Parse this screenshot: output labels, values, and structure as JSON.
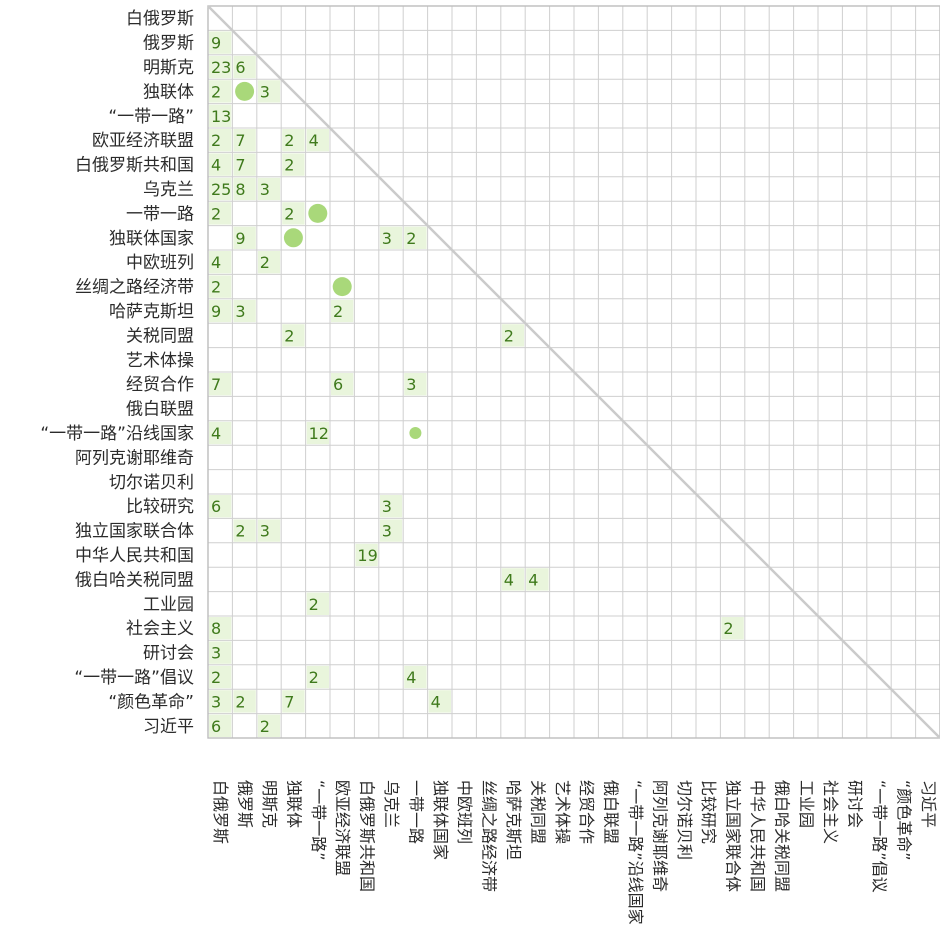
{
  "chart_data": {
    "type": "heatmap",
    "title": "",
    "labels": [
      "白俄罗斯",
      "俄罗斯",
      "明斯克",
      "独联体",
      "“一带一路”",
      "欧亚经济联盟",
      "白俄罗斯共和国",
      "乌克兰",
      "一带一路",
      "独联体国家",
      "中欧班列",
      "丝绸之路经济带",
      "哈萨克斯坦",
      "关税同盟",
      "艺术体操",
      "经贸合作",
      "俄白联盟",
      "“一带一路”沿线国家",
      "阿列克谢耶维奇",
      "切尔诺贝利",
      "比较研究",
      "独立国家联合体",
      "中华人民共和国",
      "俄白哈关税同盟",
      "工业园",
      "社会主义",
      "研讨会",
      "“一带一路”倡议",
      "“颜色革命”",
      "习近平"
    ],
    "column_labels": [
      "白俄罗斯",
      "俄罗斯",
      "明斯克",
      "独联体",
      "“一带一路”",
      "欧亚经济联盟",
      "白俄罗斯共和国",
      "乌克兰",
      "一带一路",
      "独联体国家",
      "中欧班列",
      "丝绸之路经济带",
      "哈萨克斯坦",
      "关税同盟",
      "艺术体操",
      "经贸合作",
      "俄白联盟",
      "“一带一路”沿线国家",
      "阿列克谢耶维奇",
      "切尔诺贝利",
      "比较研究",
      "独立国家联合体",
      "中华人民共和国",
      "俄白哈关税同盟",
      "工业园",
      "社会主义",
      "研讨会",
      "“一带一路”倡议",
      "“颜色革命”",
      "习近平"
    ],
    "matrix": "lower-triangular co-occurrence counts",
    "cells": [
      {
        "row": 1,
        "col": 0,
        "value": 9
      },
      {
        "row": 2,
        "col": 0,
        "value": 23
      },
      {
        "row": 2,
        "col": 1,
        "value": 6
      },
      {
        "row": 3,
        "col": 0,
        "value": 2
      },
      {
        "row": 3,
        "col": 1,
        "value": null,
        "marker": "dot"
      },
      {
        "row": 3,
        "col": 2,
        "value": 3
      },
      {
        "row": 4,
        "col": 0,
        "value": 13
      },
      {
        "row": 5,
        "col": 0,
        "value": 2
      },
      {
        "row": 5,
        "col": 1,
        "value": 7
      },
      {
        "row": 5,
        "col": 3,
        "value": 2
      },
      {
        "row": 5,
        "col": 4,
        "value": 4
      },
      {
        "row": 6,
        "col": 0,
        "value": 4
      },
      {
        "row": 6,
        "col": 1,
        "value": 7
      },
      {
        "row": 6,
        "col": 3,
        "value": 2
      },
      {
        "row": 7,
        "col": 0,
        "value": 25
      },
      {
        "row": 7,
        "col": 1,
        "value": 8
      },
      {
        "row": 7,
        "col": 2,
        "value": 3
      },
      {
        "row": 8,
        "col": 0,
        "value": 2
      },
      {
        "row": 8,
        "col": 3,
        "value": 2
      },
      {
        "row": 8,
        "col": 4,
        "value": null,
        "marker": "dot"
      },
      {
        "row": 9,
        "col": 1,
        "value": 9
      },
      {
        "row": 9,
        "col": 3,
        "value": null,
        "marker": "dot"
      },
      {
        "row": 9,
        "col": 7,
        "value": 3
      },
      {
        "row": 9,
        "col": 8,
        "value": 2
      },
      {
        "row": 10,
        "col": 0,
        "value": 4
      },
      {
        "row": 10,
        "col": 2,
        "value": 2
      },
      {
        "row": 11,
        "col": 0,
        "value": 2
      },
      {
        "row": 11,
        "col": 5,
        "value": null,
        "marker": "dot"
      },
      {
        "row": 12,
        "col": 0,
        "value": 9
      },
      {
        "row": 12,
        "col": 1,
        "value": 3
      },
      {
        "row": 12,
        "col": 5,
        "value": 2
      },
      {
        "row": 13,
        "col": 3,
        "value": 2
      },
      {
        "row": 13,
        "col": 12,
        "value": 2
      },
      {
        "row": 15,
        "col": 0,
        "value": 7
      },
      {
        "row": 15,
        "col": 5,
        "value": 6
      },
      {
        "row": 15,
        "col": 8,
        "value": 3
      },
      {
        "row": 17,
        "col": 0,
        "value": 4
      },
      {
        "row": 17,
        "col": 4,
        "value": 12
      },
      {
        "row": 17,
        "col": 8,
        "value": null,
        "marker": "small-dot"
      },
      {
        "row": 20,
        "col": 0,
        "value": 6
      },
      {
        "row": 20,
        "col": 7,
        "value": 3
      },
      {
        "row": 21,
        "col": 1,
        "value": 2
      },
      {
        "row": 21,
        "col": 2,
        "value": 3
      },
      {
        "row": 21,
        "col": 7,
        "value": 3
      },
      {
        "row": 22,
        "col": 6,
        "value": 19
      },
      {
        "row": 23,
        "col": 12,
        "value": 4
      },
      {
        "row": 23,
        "col": 13,
        "value": 4
      },
      {
        "row": 24,
        "col": 4,
        "value": 2
      },
      {
        "row": 25,
        "col": 0,
        "value": 8
      },
      {
        "row": 25,
        "col": 21,
        "value": 2
      },
      {
        "row": 26,
        "col": 0,
        "value": 3
      },
      {
        "row": 27,
        "col": 0,
        "value": 2
      },
      {
        "row": 27,
        "col": 4,
        "value": 2
      },
      {
        "row": 27,
        "col": 8,
        "value": 4
      },
      {
        "row": 28,
        "col": 0,
        "value": 3
      },
      {
        "row": 28,
        "col": 1,
        "value": 2
      },
      {
        "row": 28,
        "col": 3,
        "value": 7
      },
      {
        "row": 28,
        "col": 9,
        "value": 4
      },
      {
        "row": 29,
        "col": 0,
        "value": 6
      },
      {
        "row": 29,
        "col": 2,
        "value": 2
      }
    ],
    "diagonal_line": true,
    "grid": true,
    "colors": {
      "label": "#2b2b2b",
      "number": "#3f7a1c",
      "cell_fill": "#e9f5dc",
      "dot": "#a9d87a",
      "grid": "#cfcfcf"
    }
  }
}
